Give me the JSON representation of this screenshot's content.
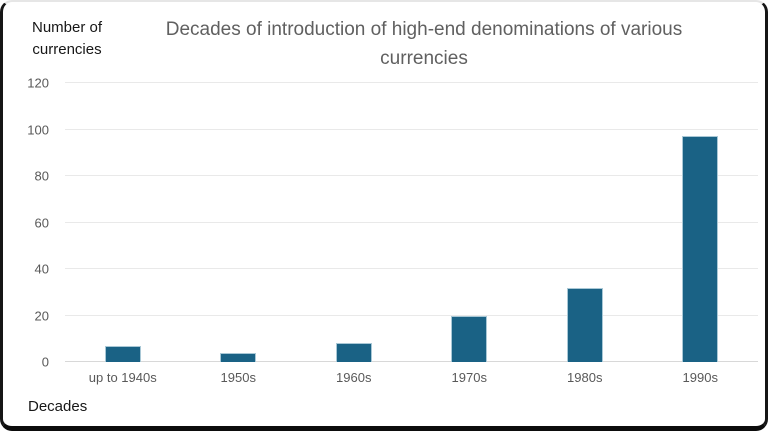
{
  "chart": {
    "y_axis_title": "Number of currencies",
    "x_axis_title": "Decades",
    "title": "Decades of introduction of high-end denominations of various currencies"
  },
  "chart_data": {
    "type": "bar",
    "title": "Decades of introduction of high-end denominations of various currencies",
    "categories": [
      "up to 1940s",
      "1950s",
      "1960s",
      "1970s",
      "1980s",
      "1990s"
    ],
    "values": [
      7,
      4,
      8,
      20,
      32,
      97
    ],
    "xlabel": "Decades",
    "ylabel": "Number of currencies",
    "ylim": [
      0,
      120
    ],
    "yticks": [
      0,
      20,
      40,
      60,
      80,
      100,
      120
    ],
    "grid": true,
    "legend": "none",
    "bar_color": "#1a6285",
    "grid_color": "#e9e9e9",
    "tick_label_color": "#595959",
    "title_color": "#606060",
    "axis_title_color": "#171717"
  }
}
